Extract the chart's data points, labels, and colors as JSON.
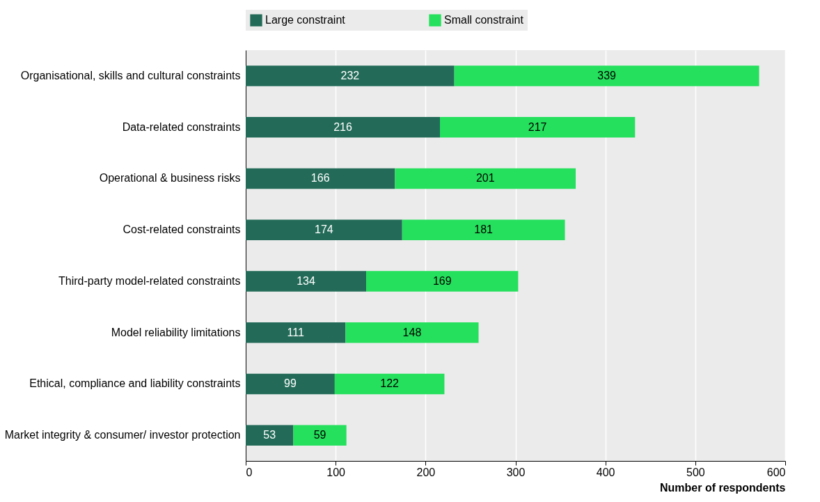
{
  "chart_data": {
    "type": "bar",
    "orientation": "horizontal",
    "stacked": true,
    "xlabel": "Number of respondents",
    "categories": [
      "Organisational, skills and cultural constraints",
      "Data-related constraints",
      "Operational & business risks",
      "Cost-related constraints",
      "Third-party model-related constraints",
      "Model reliability limitations",
      "Ethical, compliance and liability constraints",
      "Market integrity & consumer/ investor protection"
    ],
    "series": [
      {
        "name": "Large constraint",
        "color": "#236b58",
        "values": [
          232,
          216,
          166,
          174,
          134,
          111,
          99,
          53
        ]
      },
      {
        "name": "Small constraint",
        "color": "#24e05c",
        "values": [
          339,
          217,
          201,
          181,
          169,
          148,
          122,
          59
        ]
      }
    ],
    "xlim": [
      0,
      600
    ],
    "xticks": [
      0,
      100,
      200,
      300,
      400,
      500,
      600
    ],
    "grid": "x",
    "legend": "top",
    "data_labels": true
  }
}
